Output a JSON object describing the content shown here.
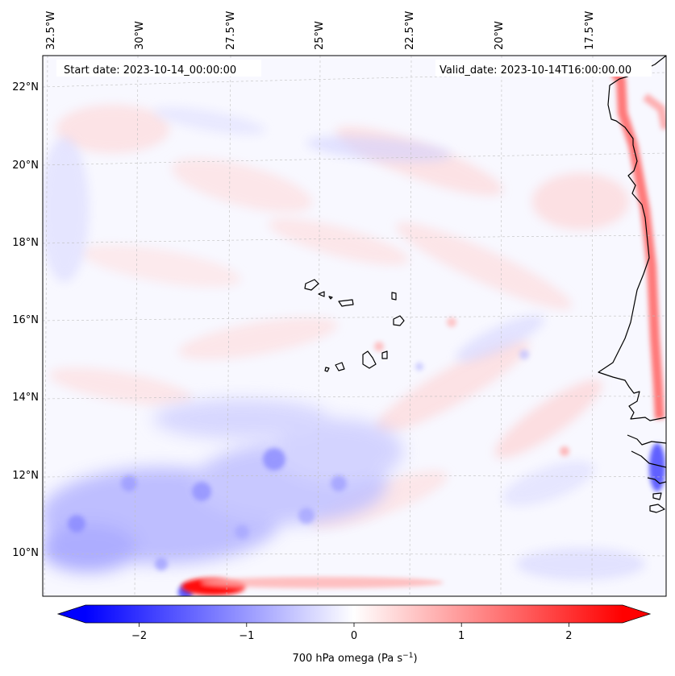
{
  "header": {
    "start_date": "Start date: 2023-10-14_00:00:00",
    "valid_date": "Valid_date: 2023-10-14T16:00:00.00"
  },
  "lon_labels": [
    "32.5°W",
    "30°W",
    "27.5°W",
    "25°W",
    "22.5°W",
    "20°W",
    "17.5°W"
  ],
  "lat_labels": [
    "22°N",
    "20°N",
    "18°N",
    "16°N",
    "14°N",
    "12°N",
    "10°N"
  ],
  "colorbar": {
    "label_prefix": "700 hPa omega (Pa s",
    "label_exp": "−1",
    "label_suffix": ")",
    "tick_labels": [
      "−2",
      "−1",
      "0",
      "1",
      "2"
    ],
    "tick_values": [
      -2,
      -1,
      0,
      1,
      2
    ],
    "min": -2.5,
    "max": 2.5,
    "colormap": "bwr",
    "extend": "both",
    "neg_color": "#0000ff",
    "zero_color": "#ffffff",
    "pos_color": "#ff0000"
  },
  "coastline_color": "#000000",
  "gridline_style": "dashed light gray"
}
